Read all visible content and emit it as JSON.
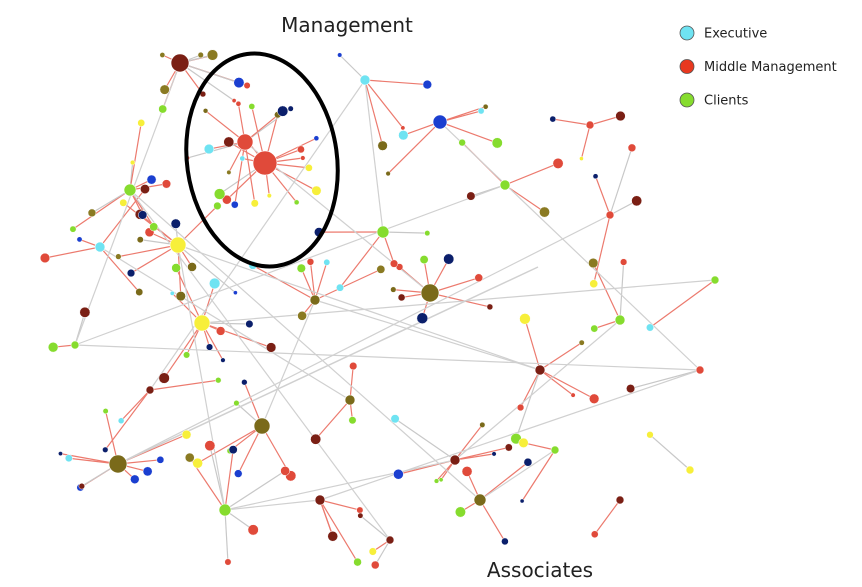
{
  "labels": {
    "top": "Management",
    "bottom": "Associates"
  },
  "legend": [
    {
      "label": "Executive",
      "color": "#6fe3f2"
    },
    {
      "label": "Middle Management",
      "color": "#e8381f"
    },
    {
      "label": "Clients",
      "color": "#86dc2e"
    }
  ]
}
